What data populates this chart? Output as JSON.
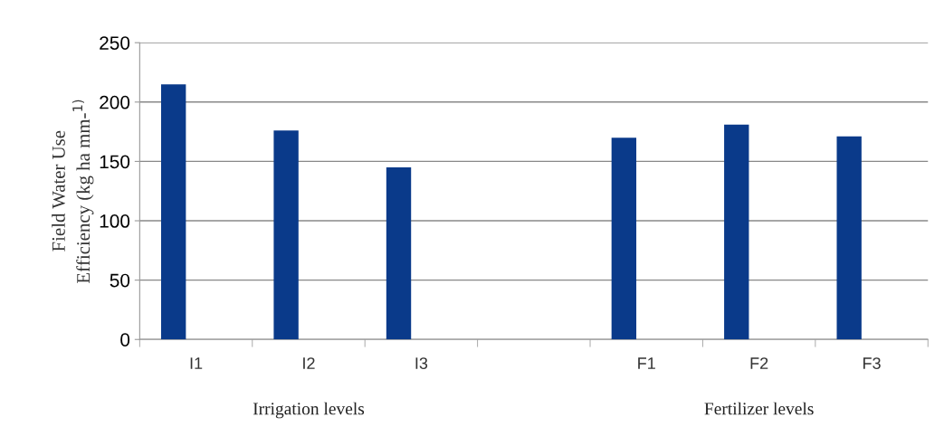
{
  "chart_data": {
    "type": "bar",
    "categories": [
      "I1",
      "I2",
      "I3",
      null,
      "F1",
      "F2",
      "F3"
    ],
    "values": [
      215,
      176,
      145,
      null,
      170,
      181,
      171
    ],
    "color": "#0a3a8a",
    "ylabel": "Field Water Use\nEfficiency (kg ha mm-$^{1)}$",
    "ylim": [
      0,
      250
    ],
    "yticks": [
      0,
      50,
      100,
      150,
      200,
      250
    ],
    "grid": "y",
    "legend": false,
    "annotations": [
      "Irrigation levels",
      "Fertilizer levels"
    ]
  }
}
